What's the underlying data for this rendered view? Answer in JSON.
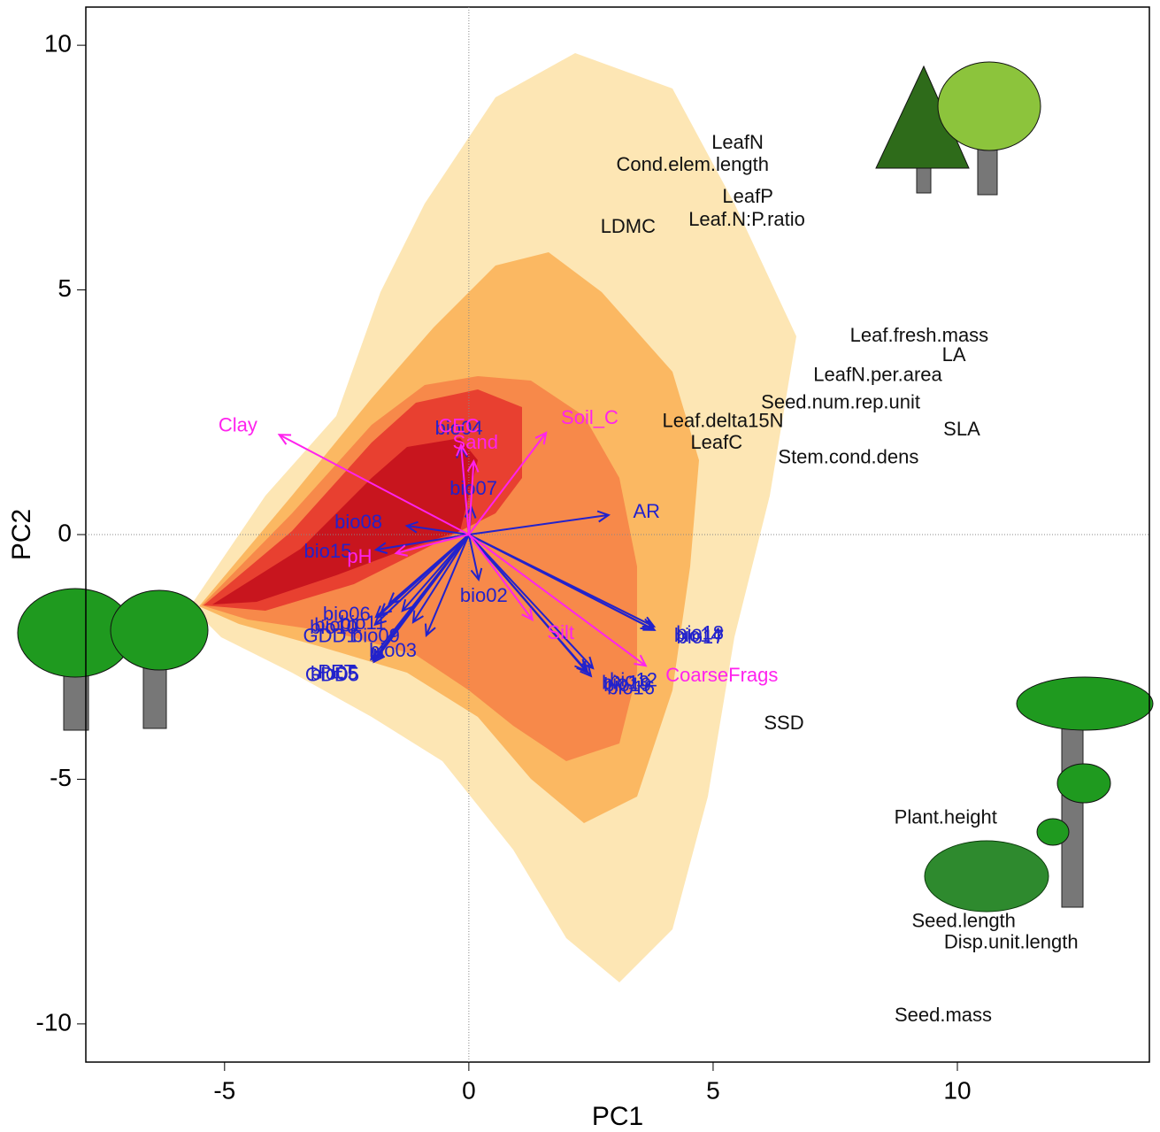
{
  "chart_data": {
    "type": "biplot",
    "x_label": "PC1",
    "y_label": "PC2",
    "xlim": [
      -7.84,
      13.93
    ],
    "ylim": [
      -10.78,
      10.78
    ],
    "xticks": [
      -5,
      0,
      5,
      10
    ],
    "yticks": [
      -10,
      -5,
      0,
      5,
      10
    ],
    "zero_lines": true,
    "vector_sets": [
      {
        "color": "#2222cc",
        "labels": [
          "bio04",
          "bio07",
          "AR",
          "bio08",
          "bio15",
          "bio06",
          "bio10",
          "bio01",
          "bio11",
          "GDD1",
          "bio05",
          "bio03",
          "GDD5",
          "bio09",
          "PET",
          "bio02",
          "bio18",
          "bio17",
          "bio14",
          "bio19",
          "bio12",
          "bio16",
          "bio13"
        ],
        "x": [
          -0.16,
          0.05,
          2.86,
          -1.27,
          -1.9,
          -1.63,
          -1.9,
          -1.81,
          -1.36,
          -1.92,
          -1.96,
          -0.87,
          -1.94,
          -1.14,
          -2.0,
          0.2,
          3.79,
          3.8,
          3.75,
          2.43,
          2.54,
          2.5,
          2.39
        ],
        "y": [
          1.79,
          0.56,
          0.4,
          0.18,
          -0.31,
          -1.41,
          -1.68,
          -1.63,
          -1.56,
          -1.84,
          -2.57,
          -2.06,
          -2.6,
          -1.79,
          -2.55,
          -0.92,
          -1.88,
          -1.95,
          -1.92,
          -2.82,
          -2.73,
          -2.89,
          -2.78
        ]
      },
      {
        "color": "#ff22ee",
        "labels": [
          "Clay",
          "CEC",
          "Soil_C",
          "Sand",
          "pH",
          "Silt",
          "CoarseFrags"
        ],
        "x": [
          -3.88,
          -0.16,
          1.58,
          0.1,
          -1.49,
          1.3,
          3.62
        ],
        "y": [
          2.04,
          1.83,
          2.08,
          1.5,
          -0.38,
          -1.74,
          -2.68
        ]
      }
    ],
    "points": {
      "color": "#111111",
      "labels": [
        "LeafN",
        "Cond.elem.length",
        "LeafP",
        "Leaf.N:P.ratio",
        "LDMC",
        "Leaf.fresh.mass",
        "LA",
        "LeafN.per.area",
        "Seed.num.rep.unit",
        "Leaf.delta15N",
        "SLA",
        "LeafC",
        "Stem.cond.dens",
        "SSD",
        "Plant.height",
        "Seed.length",
        "Disp.unit.length",
        "Seed.mass"
      ],
      "x": [
        5.5,
        4.58,
        5.71,
        5.69,
        3.26,
        9.22,
        9.93,
        8.37,
        7.61,
        5.2,
        10.09,
        5.07,
        7.77,
        6.45,
        9.76,
        10.13,
        11.1,
        9.71
      ],
      "y": [
        7.99,
        7.54,
        6.89,
        6.42,
        6.27,
        4.05,
        3.65,
        3.24,
        2.68,
        2.3,
        2.13,
        1.86,
        1.56,
        -3.87,
        -5.8,
        -7.92,
        -8.35,
        -9.84
      ]
    }
  }
}
